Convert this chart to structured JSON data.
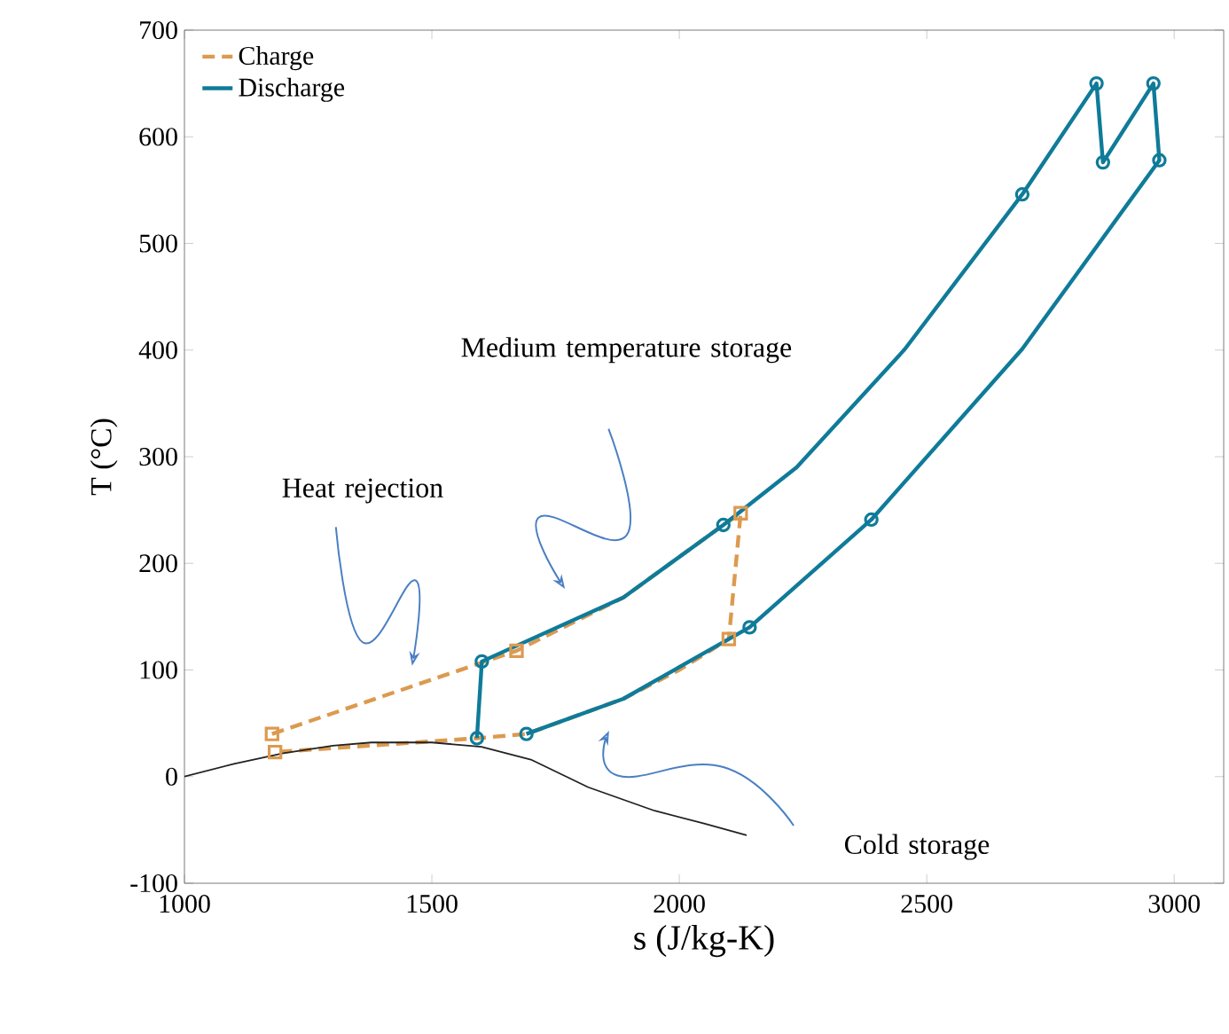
{
  "chart_data": {
    "type": "line",
    "xlabel": "s (J/kg-K)",
    "ylabel": "T (°C)",
    "xlim": [
      1000,
      3100
    ],
    "ylim": [
      -100,
      700
    ],
    "xticks": [
      1000,
      1500,
      2000,
      2500,
      3000
    ],
    "yticks": [
      -100,
      0,
      100,
      200,
      300,
      400,
      500,
      600,
      700
    ],
    "grid": false,
    "legend": "top left",
    "series": [
      {
        "name": "Charge",
        "color": "#dc9a50",
        "line_style": "dashed",
        "x": [
          1177,
          1671,
          1887,
          2089,
          2124,
          2100,
          2000,
          1887,
          1691,
          1591,
          1183
        ],
        "values": [
          40,
          118,
          168,
          236,
          247,
          129,
          100,
          73,
          40,
          36,
          23
        ]
      },
      {
        "name": "Discharge",
        "color": "#0f7b99",
        "line_style": "solid",
        "x": [
          1591,
          1601,
          1887,
          2089,
          2237,
          2456,
          2693,
          2843,
          2856,
          2958,
          2970,
          2693,
          2388,
          2142,
          1887,
          1691
        ],
        "values": [
          36,
          108,
          168,
          236,
          290,
          401,
          546,
          650,
          576,
          650,
          578,
          401,
          241,
          140,
          73,
          40
        ]
      },
      {
        "type": "scatter",
        "marker": "square",
        "color": "#dc9a50",
        "x": [
          1177,
          1183,
          1671,
          2124,
          2100
        ],
        "values": [
          40,
          23,
          118,
          247,
          129
        ]
      },
      {
        "type": "scatter",
        "marker": "circle",
        "color": "#0f7b99",
        "x": [
          1591,
          1601,
          1691,
          2089,
          2142,
          2388,
          2693,
          2843,
          2856,
          2958,
          2970
        ],
        "values": [
          36,
          108,
          40,
          236,
          140,
          241,
          546,
          650,
          576,
          650,
          578
        ]
      },
      {
        "color": "#222222",
        "line_style": "solid",
        "x": [
          1000,
          1100,
          1200,
          1300,
          1378,
          1500,
          1600,
          1700,
          1816,
          1950,
          2050,
          2136
        ],
        "values": [
          0,
          12,
          22,
          29,
          32,
          32,
          28,
          16,
          -10,
          -32,
          -44,
          -55
        ]
      }
    ],
    "annotations": [
      "Medium temperature storage",
      "Heat rejection",
      "Cold storage"
    ]
  }
}
